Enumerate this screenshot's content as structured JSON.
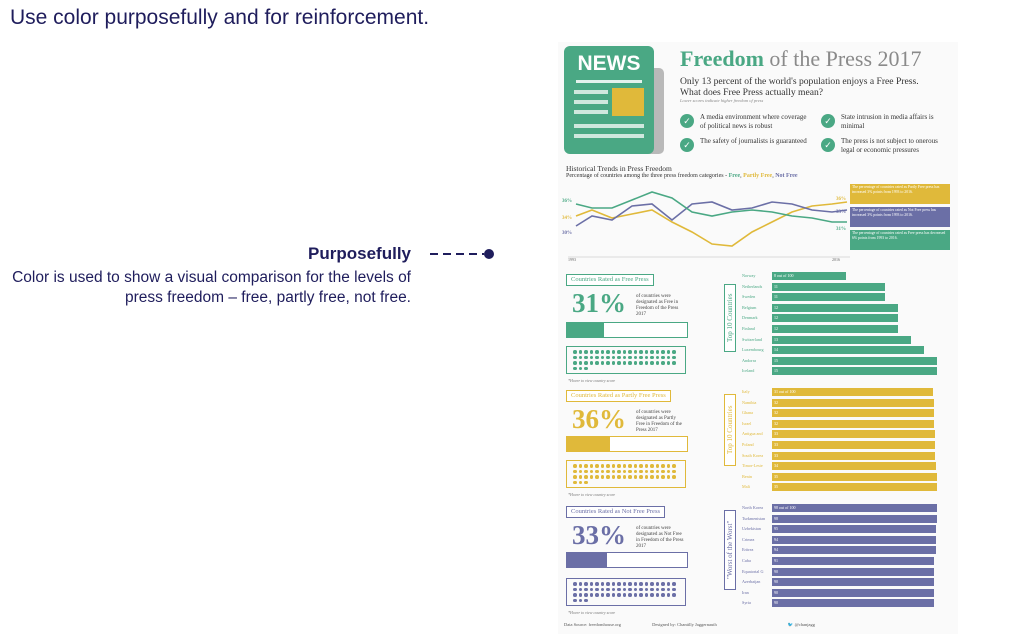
{
  "slide": {
    "title": "Use color purposefully and for reinforcement.",
    "callout_heading": "Purposefully",
    "callout_body": "Color is used to show a visual comparison for the levels of press freedom – free, partly free, not free."
  },
  "infographic": {
    "logo_text": "NEWS",
    "title_bold": "Freedom",
    "title_rest": " of the Press 2017",
    "subtitle_line1": "Only 13 percent of the world's population enjoys a Free Press.",
    "subtitle_line2": "What does Free Press actually mean?",
    "tiny_note": "Lower scores indicate higher freedom of press",
    "definitions": [
      "A media environment where coverage of political news is robust",
      "State intrusion in media affairs is minimal",
      "The safety of journalists is guaranteed",
      "The press is not subject to onerous legal or economic pressures"
    ],
    "trends": {
      "title": "Historical Trends in Press Freedom",
      "subtitle_prefix": "Percentage of countries among the three press freedom categories - ",
      "free": "Free",
      "partly": "Partly Free",
      "not": "Not Free",
      "start_year": "1993",
      "end_year": "2016",
      "left_labels": [
        "36%",
        "34%",
        "30%"
      ],
      "right_labels": [
        "36%",
        "33%",
        "31%"
      ],
      "notes": [
        "The percentage of countries rated as Partly Free press has increased 3% points from 1993 to 2016.",
        "The percentage of countries rated as Not Free press has increased 3% points from 1993 to 2016.",
        "The percentage of countries rated as Free press has decreased 6% points from 1993 to 2016."
      ]
    },
    "free": {
      "label": "Countries Rated as Free Press",
      "pct": "31%",
      "desc": "of countries were designated as Free in Freedom of the Press 2017",
      "fill": 0.31,
      "hover": "*Hover to view country score",
      "side_label": "Top 10 Countries",
      "countries": [
        "Norway",
        "Netherlands",
        "Sweden",
        "Belgium",
        "Denmark",
        "Finland",
        "Switzerland",
        "Luxembourg",
        "Andorra",
        "Iceland"
      ],
      "scores": [
        8,
        11,
        11,
        12,
        12,
        12,
        13,
        14,
        15,
        15
      ],
      "first_value": "8 out of 100"
    },
    "partly": {
      "label": "Countries Rated as Partly Free Press",
      "pct": "36%",
      "desc": "of countries were designated as Partly Free in Freedom of the Press 2017",
      "fill": 0.36,
      "hover": "*Hover to view country score",
      "side_label": "Top 10 Countries",
      "countries": [
        "Italy",
        "Namibia",
        "Ghana",
        "Israel",
        "Antigua and",
        "Poland",
        "South Korea",
        "Timor-Leste",
        "Benin",
        "Mali"
      ],
      "scores": [
        31,
        32,
        32,
        32,
        33,
        33,
        33,
        34,
        35,
        35
      ],
      "first_value": "31 out of 100"
    },
    "notfree": {
      "label": "Countries Rated as Not Free Press",
      "pct": "33%",
      "desc": "of countries were designated as Not Free in Freedom of the Press 2017",
      "fill": 0.33,
      "hover": "*Hover to view country score",
      "side_label": "\"Worst of the Worst\"",
      "countries": [
        "North Korea",
        "Turkmenistan",
        "Uzbekistan",
        "Crimea",
        "Eritrea",
        "Cuba",
        "Equatorial G",
        "Azerbaijan",
        "Iran",
        "Syria"
      ],
      "scores": [
        98,
        98,
        95,
        94,
        94,
        91,
        90,
        90,
        90,
        90
      ],
      "first_value": "98 out of 100"
    },
    "footer": {
      "source": "Data Source: freedomhouse.org",
      "designer": "Designed by: Chantilly Jaggernauth",
      "handle": "@chanjagg"
    },
    "colors": {
      "free": "#4aa884",
      "partly": "#e0b93a",
      "notfree": "#6b6fa6",
      "navy": "#1f1d5c"
    }
  }
}
